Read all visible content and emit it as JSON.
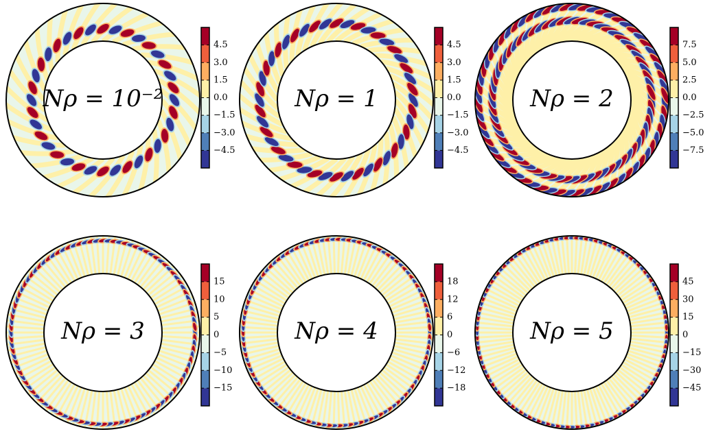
{
  "chart_data": [
    {
      "type": "contour",
      "title": "Nρ = 10⁻²",
      "clim": [
        -6,
        6
      ],
      "colors": [
        "#313695",
        "#4f7fb8",
        "#a6d3e6",
        "#e9f6ea",
        "#fef0a8",
        "#fdae61",
        "#ef5f3c",
        "#a50026"
      ],
      "cticks": [
        {
          "value": -4.5,
          "label": "−4.5"
        },
        {
          "value": -3,
          "label": "−3.0"
        },
        {
          "value": -1.5,
          "label": "−1.5"
        },
        {
          "value": 0,
          "label": "0.0"
        },
        1.5,
        {
          "value": 3,
          "label": "3.0"
        },
        4.5
      ]
    },
    {
      "type": "contour",
      "title": "Nρ = 1",
      "clim": [
        -6,
        6
      ],
      "colors": [
        "#313695",
        "#4f7fb8",
        "#a6d3e6",
        "#e9f6ea",
        "#fef0a8",
        "#fdae61",
        "#ef5f3c",
        "#a50026"
      ],
      "cticks": [
        {
          "value": -4.5,
          "label": "−4.5"
        },
        {
          "value": -3,
          "label": "−3.0"
        },
        {
          "value": -1.5,
          "label": "−1.5"
        },
        {
          "value": 0,
          "label": "0.0"
        },
        1.5,
        {
          "value": 3,
          "label": "3.0"
        },
        4.5
      ]
    },
    {
      "type": "contour",
      "title": "Nρ = 2",
      "clim": [
        -10,
        10
      ],
      "colors": [
        "#313695",
        "#4f7fb8",
        "#a6d3e6",
        "#e9f6ea",
        "#fef0a8",
        "#fdae61",
        "#ef5f3c",
        "#a50026"
      ],
      "cticks": [
        {
          "value": -7.5,
          "label": "−7.5"
        },
        {
          "value": -5,
          "label": "−5.0"
        },
        {
          "value": -2.5,
          "label": "−2.5"
        },
        {
          "value": 0,
          "label": "0.0"
        },
        2.5,
        {
          "value": 5,
          "label": "5.0"
        },
        7.5
      ]
    },
    {
      "type": "contour",
      "title": "Nρ = 3",
      "clim": [
        -20,
        20
      ],
      "colors": [
        "#313695",
        "#4f7fb8",
        "#a6d3e6",
        "#e9f6ea",
        "#fef0a8",
        "#fdae61",
        "#ef5f3c",
        "#a50026"
      ],
      "cticks": [
        {
          "value": -15,
          "label": "−15"
        },
        {
          "value": -10,
          "label": "−10"
        },
        {
          "value": -5,
          "label": "−5"
        },
        0,
        5,
        10,
        15
      ]
    },
    {
      "type": "contour",
      "title": "Nρ = 4",
      "clim": [
        -24,
        24
      ],
      "colors": [
        "#313695",
        "#4f7fb8",
        "#a6d3e6",
        "#e9f6ea",
        "#fef0a8",
        "#fdae61",
        "#ef5f3c",
        "#a50026"
      ],
      "cticks": [
        {
          "value": -18,
          "label": "−18"
        },
        {
          "value": -12,
          "label": "−12"
        },
        {
          "value": -6,
          "label": "−6"
        },
        0,
        6,
        12,
        18
      ]
    },
    {
      "type": "contour",
      "title": "Nρ = 5",
      "clim": [
        -60,
        60
      ],
      "colors": [
        "#313695",
        "#4f7fb8",
        "#a6d3e6",
        "#e9f6ea",
        "#fef0a8",
        "#fdae61",
        "#ef5f3c",
        "#a50026"
      ],
      "cticks": [
        {
          "value": -45,
          "label": "−45"
        },
        {
          "value": -30,
          "label": "−30"
        },
        {
          "value": -15,
          "label": "−15"
        },
        0,
        15,
        30,
        45
      ]
    }
  ]
}
